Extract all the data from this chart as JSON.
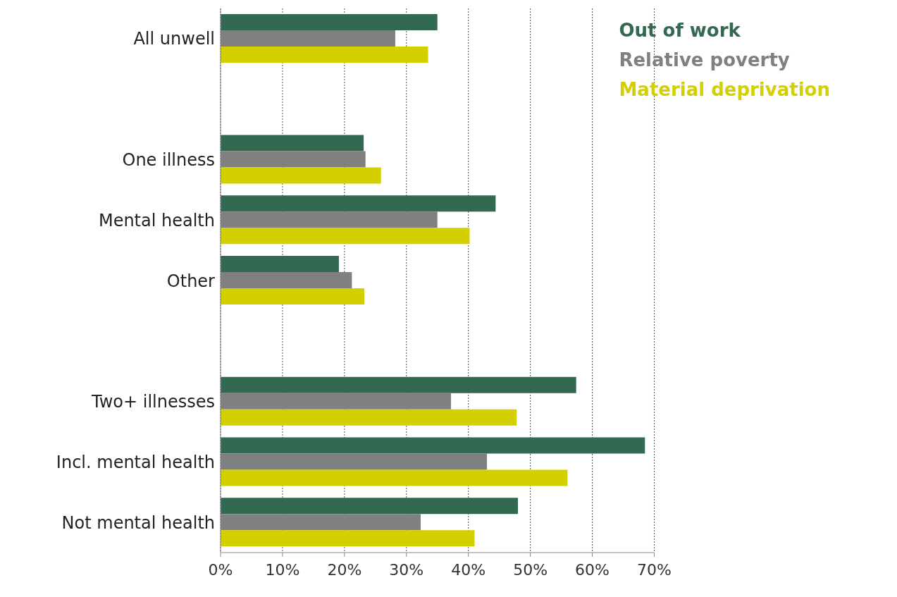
{
  "chart_data": {
    "type": "bar",
    "orientation": "horizontal",
    "categories": [
      "All unwell",
      null,
      "One illness",
      "Mental health",
      "Other",
      null,
      "Two+ illnesses",
      "Incl. mental health",
      "Not mental health"
    ],
    "series": [
      {
        "name": "Out of work",
        "color": "#336950",
        "values": [
          35.0,
          null,
          23.1,
          44.4,
          19.1,
          null,
          57.4,
          68.5,
          48.0
        ]
      },
      {
        "name": "Relative poverty",
        "color": "#808080",
        "values": [
          28.2,
          null,
          23.4,
          35.0,
          21.2,
          null,
          37.2,
          43.0,
          32.3
        ]
      },
      {
        "name": "Material deprivation",
        "color": "#d4d000",
        "values": [
          33.5,
          null,
          25.9,
          40.2,
          23.2,
          null,
          47.8,
          56.0,
          41.0
        ]
      }
    ],
    "xlim": [
      0,
      70
    ],
    "xticks": [
      {
        "value": 0,
        "label": "0%"
      },
      {
        "value": 10,
        "label": "10%"
      },
      {
        "value": 20,
        "label": "20%"
      },
      {
        "value": 30,
        "label": "30%"
      },
      {
        "value": 40,
        "label": "40%"
      },
      {
        "value": 50,
        "label": "50%"
      },
      {
        "value": 60,
        "label": "60%"
      },
      {
        "value": 70,
        "label": "70%"
      }
    ],
    "grid": "x",
    "legend": "top right"
  }
}
